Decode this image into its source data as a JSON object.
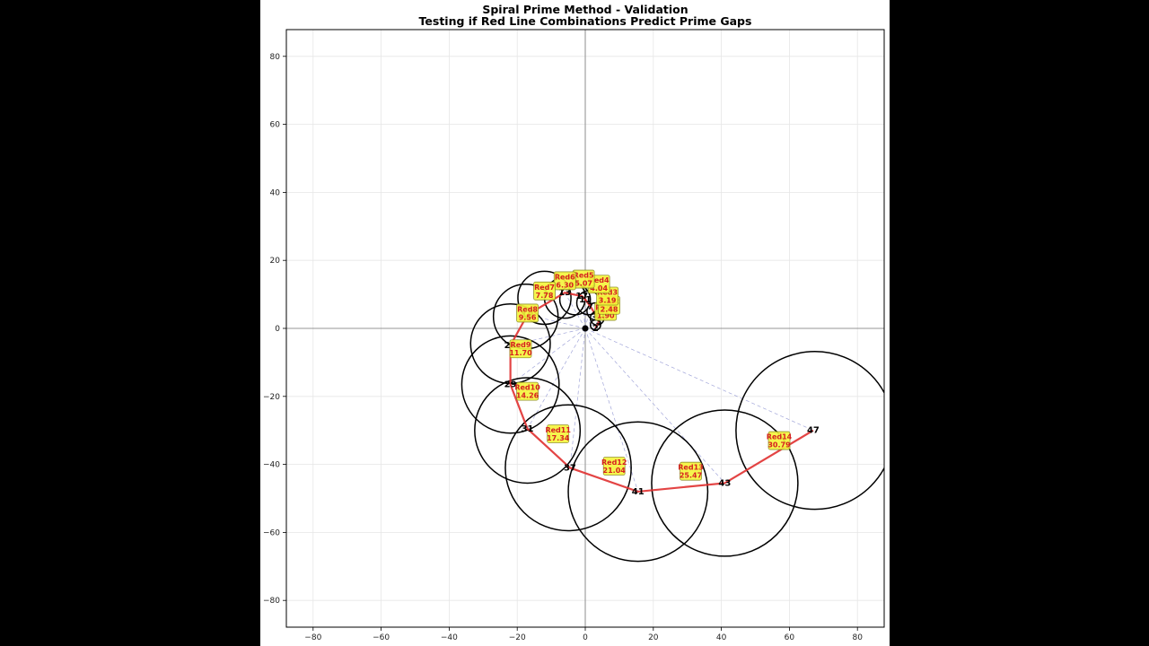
{
  "title": "Spiral Prime Method - Validation",
  "subtitle": "Testing if Red Line Combinations Predict Prime Gaps",
  "chart_data": {
    "type": "scatter",
    "title": "Spiral Prime Method - Validation\nTesting if Red Line Combinations Predict Prime Gaps",
    "xlabel": "",
    "ylabel": "",
    "xlim": [
      -88,
      88
    ],
    "ylim": [
      -88,
      88
    ],
    "grid": true,
    "x_ticks": [
      -80,
      -60,
      -40,
      -20,
      0,
      20,
      40,
      60,
      80
    ],
    "y_ticks": [
      -80,
      -60,
      -40,
      -20,
      0,
      20,
      40,
      60,
      80
    ],
    "x_tick_labels": [
      "−80",
      "−60",
      "−40",
      "−20",
      "0",
      "20",
      "40",
      "60",
      "80"
    ],
    "y_tick_labels": [
      "−80",
      "−60",
      "−40",
      "−20",
      "0",
      "20",
      "40",
      "60",
      "80"
    ],
    "origin": [
      0,
      0
    ],
    "colors": {
      "path": "#e03030",
      "circle": "#000000",
      "ray": "#8a8fd0",
      "label_bg": "#f5f53a",
      "label_text": "#d62020",
      "grid": "#e6e6e6"
    },
    "primes": [
      {
        "p": 2,
        "x": 3,
        "y": 0
      },
      {
        "p": 3,
        "x": 4,
        "y": 2
      },
      {
        "p": 5,
        "x": 3,
        "y": 4
      },
      {
        "p": 7,
        "x": 1.5,
        "y": 6.5
      },
      {
        "p": 11,
        "x": 0,
        "y": 8.5
      },
      {
        "p": 13,
        "x": -6,
        "y": 10.5
      },
      {
        "p": 17,
        "x": -1,
        "y": 9.5
      },
      {
        "p": 19,
        "x": -17,
        "y": 4
      },
      {
        "p": 23,
        "x": -22,
        "y": -5
      },
      {
        "p": 29,
        "x": -22,
        "y": -16.5
      },
      {
        "p": 31,
        "x": -17,
        "y": -29.5
      },
      {
        "p": 37,
        "x": -4.5,
        "y": -41
      },
      {
        "p": 41,
        "x": 15.5,
        "y": -48
      },
      {
        "p": 43,
        "x": 41,
        "y": -45.5
      },
      {
        "p": 47,
        "x": 67,
        "y": -30
      }
    ],
    "path_order": [
      2,
      3,
      5,
      7,
      11,
      17,
      13,
      19,
      23,
      29,
      31,
      37,
      41,
      43,
      47
    ],
    "circles": [
      {
        "cx": 3,
        "cy": 1,
        "r": 1.5
      },
      {
        "cx": 3.5,
        "cy": 3,
        "r": 2
      },
      {
        "cx": 3,
        "cy": 5,
        "r": 2.5
      },
      {
        "cx": 1,
        "cy": 7.5,
        "r": 3.5
      },
      {
        "cx": -3,
        "cy": 8.5,
        "r": 4.5
      },
      {
        "cx": -6,
        "cy": 9,
        "r": 6
      },
      {
        "cx": -12,
        "cy": 9,
        "r": 7.8
      },
      {
        "cx": -17.5,
        "cy": 3.5,
        "r": 9.5
      },
      {
        "cx": -22,
        "cy": -4.5,
        "r": 11.7
      },
      {
        "cx": -22,
        "cy": -16.5,
        "r": 14.3
      },
      {
        "cx": -17,
        "cy": -30,
        "r": 15.5
      },
      {
        "cx": -5,
        "cy": -41,
        "r": 18.5
      },
      {
        "cx": 15.5,
        "cy": -48,
        "r": 20.5
      },
      {
        "cx": 41,
        "cy": -45.5,
        "r": 21.5
      },
      {
        "cx": 67.5,
        "cy": -30,
        "r": 23.2
      }
    ],
    "red_labels": [
      {
        "name": "Red1",
        "value": 1.9,
        "x": 6,
        "y": 5
      },
      {
        "name": "Red2",
        "value": 2.48,
        "x": 7,
        "y": 6.8
      },
      {
        "name": "Red3",
        "value": 3.19,
        "x": 6.5,
        "y": 9.5
      },
      {
        "name": "Red4",
        "value": 4.04,
        "x": 4,
        "y": 13
      },
      {
        "name": "Red5",
        "value": 5.07,
        "x": -0.5,
        "y": 14.5
      },
      {
        "name": "Red6",
        "value": 6.3,
        "x": -6,
        "y": 14
      },
      {
        "name": "Red7",
        "value": 7.78,
        "x": -12,
        "y": 11
      },
      {
        "name": "Red8",
        "value": 9.56,
        "x": -17,
        "y": 4.5
      },
      {
        "name": "Red9",
        "value": 11.7,
        "x": -19,
        "y": -6
      },
      {
        "name": "Red10",
        "value": 14.26,
        "x": -17,
        "y": -18.5
      },
      {
        "name": "Red11",
        "value": 17.34,
        "x": -8,
        "y": -31
      },
      {
        "name": "Red12",
        "value": 21.04,
        "x": 8.5,
        "y": -40.5
      },
      {
        "name": "Red13",
        "value": 25.47,
        "x": 31,
        "y": -42
      },
      {
        "name": "Red14",
        "value": 30.79,
        "x": 57,
        "y": -33
      }
    ]
  }
}
